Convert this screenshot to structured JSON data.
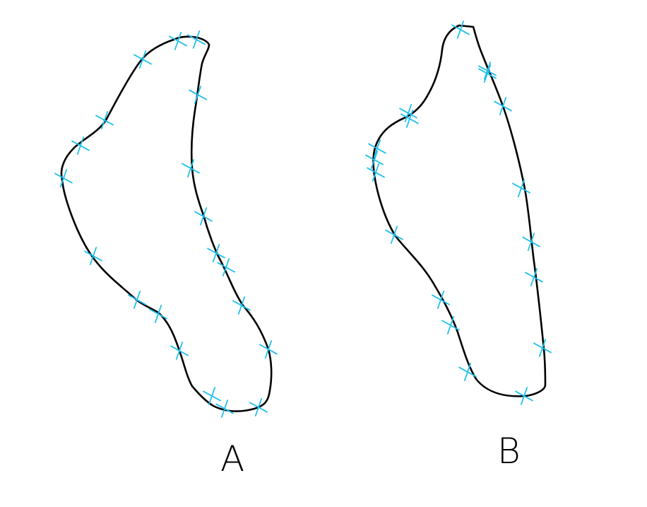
{
  "figures": [
    {
      "id": "A",
      "label": "A",
      "marker_count": 20
    },
    {
      "id": "B",
      "label": "B",
      "marker_count": 18
    }
  ],
  "colors": {
    "outline": "#000000",
    "marker": "#20c0ec",
    "background": "#ffffff"
  },
  "marker_icon": "cross-marker-icon"
}
